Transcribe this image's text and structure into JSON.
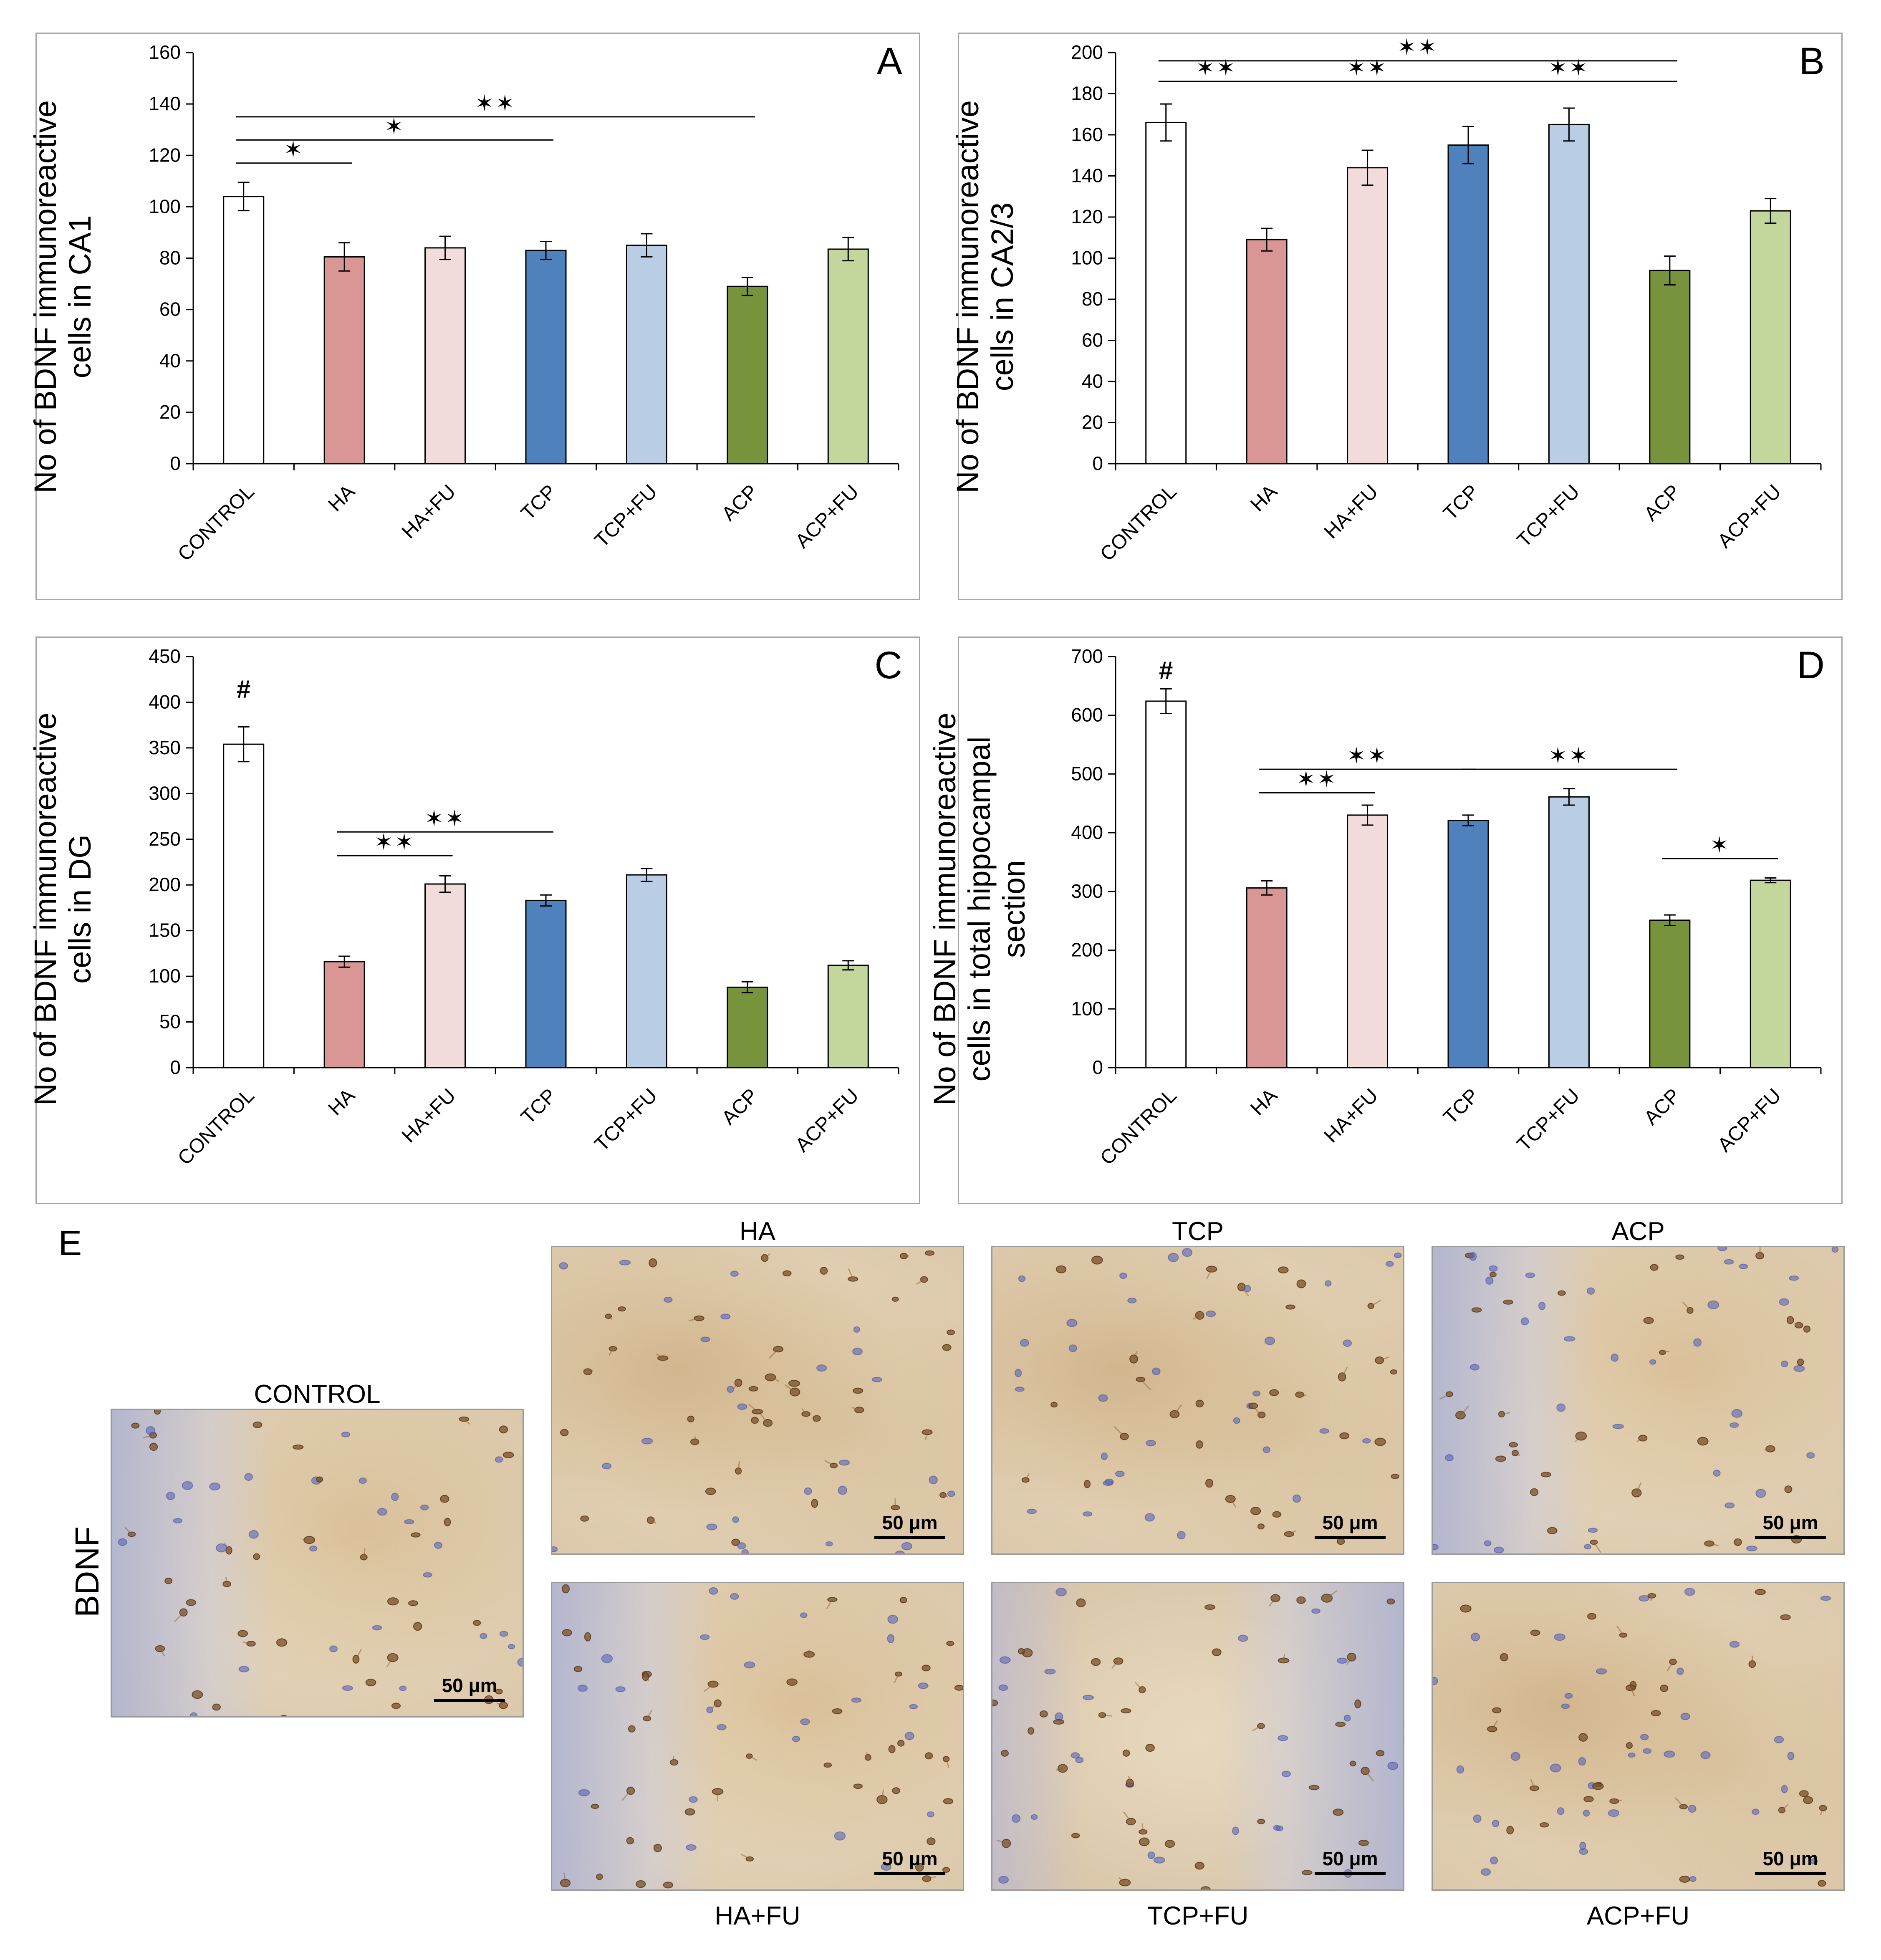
{
  "panels": [
    {
      "id": "A",
      "letter": "A",
      "ylabel_lines": [
        "No of BDNF immunoreactive",
        "cells in CA1"
      ],
      "chart_data": {
        "type": "bar",
        "categories": [
          "CONTROL",
          "HA",
          "HA+FU",
          "TCP",
          "TCP+FU",
          "ACP",
          "ACP+FU"
        ],
        "values": [
          104,
          80.5,
          84,
          83,
          85,
          69,
          83.5
        ],
        "errors": [
          5.5,
          5.5,
          4.5,
          3.5,
          4.5,
          3.5,
          4.5
        ],
        "colors": [
          "#ffffff",
          "#d99694",
          "#f2dcdb",
          "#4f81bd",
          "#b9cde5",
          "#77933c",
          "#c3d69b"
        ],
        "ylim": [
          0,
          160
        ],
        "yticks": [
          0,
          20,
          40,
          60,
          80,
          100,
          120,
          140,
          160
        ],
        "significance": [
          {
            "from": 0,
            "to": 1,
            "y": 117,
            "mark": "✶"
          },
          {
            "from": 0,
            "to": 3,
            "y": 126,
            "mark": "✶"
          },
          {
            "from": 0,
            "to": 5,
            "y": 135,
            "mark": "✶✶"
          }
        ],
        "annotations": []
      }
    },
    {
      "id": "B",
      "letter": "B",
      "ylabel_lines": [
        "No of BDNF immunoreactive",
        "cells in CA2/3"
      ],
      "chart_data": {
        "type": "bar",
        "categories": [
          "CONTROL",
          "HA",
          "HA+FU",
          "TCP",
          "TCP+FU",
          "ACP",
          "ACP+FU"
        ],
        "values": [
          166,
          109,
          144,
          155,
          165,
          94,
          123
        ],
        "errors": [
          9,
          5.5,
          8.5,
          9,
          8,
          7,
          6
        ],
        "colors": [
          "#ffffff",
          "#d99694",
          "#f2dcdb",
          "#4f81bd",
          "#b9cde5",
          "#77933c",
          "#c3d69b"
        ],
        "ylim": [
          0,
          200
        ],
        "yticks": [
          0,
          20,
          40,
          60,
          80,
          100,
          120,
          140,
          160,
          180,
          200
        ],
        "significance": [
          {
            "from": 0,
            "to": 1,
            "y": 186,
            "mark": "✶✶"
          },
          {
            "from": 1,
            "to": 3,
            "y": 186,
            "mark": "✶✶"
          },
          {
            "from": 3,
            "to": 5,
            "y": 186,
            "mark": "✶✶"
          },
          {
            "from": 0,
            "to": 5,
            "y": 196,
            "mark": "✶✶"
          }
        ],
        "annotations": []
      }
    },
    {
      "id": "C",
      "letter": "C",
      "ylabel_lines": [
        "No of BDNF immunoreactive",
        "cells in DG"
      ],
      "chart_data": {
        "type": "bar",
        "categories": [
          "CONTROL",
          "HA",
          "HA+FU",
          "TCP",
          "TCP+FU",
          "ACP",
          "ACP+FU"
        ],
        "values": [
          354,
          116,
          201,
          183,
          211,
          88,
          112
        ],
        "errors": [
          19,
          6,
          9,
          6,
          7,
          6,
          5
        ],
        "colors": [
          "#ffffff",
          "#d99694",
          "#f2dcdb",
          "#4f81bd",
          "#b9cde5",
          "#77933c",
          "#c3d69b"
        ],
        "ylim": [
          0,
          450
        ],
        "yticks": [
          0,
          50,
          100,
          150,
          200,
          250,
          300,
          350,
          400,
          450
        ],
        "significance": [
          {
            "from": 1,
            "to": 2,
            "y": 232,
            "mark": "✶✶"
          },
          {
            "from": 1,
            "to": 3,
            "y": 258,
            "mark": "✶✶"
          }
        ],
        "annotations": [
          {
            "bar": 0,
            "text": "#",
            "y": 405
          }
        ]
      }
    },
    {
      "id": "D",
      "letter": "D",
      "ylabel_lines": [
        "No of BDNF immunoreactive",
        "cells in total hippocampal",
        "section"
      ],
      "chart_data": {
        "type": "bar",
        "categories": [
          "CONTROL",
          "HA",
          "HA+FU",
          "TCP",
          "TCP+FU",
          "ACP",
          "ACP+FU"
        ],
        "values": [
          624,
          306,
          430,
          421,
          461,
          251,
          319
        ],
        "errors": [
          21,
          12,
          17,
          9,
          14,
          9,
          4
        ],
        "colors": [
          "#ffffff",
          "#d99694",
          "#f2dcdb",
          "#4f81bd",
          "#b9cde5",
          "#77933c",
          "#c3d69b"
        ],
        "ylim": [
          0,
          700
        ],
        "yticks": [
          0,
          100,
          200,
          300,
          400,
          500,
          600,
          700
        ],
        "significance": [
          {
            "from": 1,
            "to": 2,
            "y": 468,
            "mark": "✶✶"
          },
          {
            "from": 1,
            "to": 3,
            "y": 508,
            "mark": "✶✶"
          },
          {
            "from": 3,
            "to": 5,
            "y": 508,
            "mark": "✶✶"
          },
          {
            "from": 5,
            "to": 6,
            "y": 356,
            "mark": "✶"
          }
        ],
        "annotations": [
          {
            "bar": 0,
            "text": "#",
            "y": 662
          }
        ]
      }
    }
  ],
  "section_e": {
    "letter": "E",
    "row_label": "BDNF",
    "scale_text": "50 μm",
    "images": {
      "control": {
        "title": "CONTROL"
      },
      "ha": {
        "title": "HA"
      },
      "tcp": {
        "title": "TCP"
      },
      "acp": {
        "title": "ACP"
      },
      "ha_fu": {
        "title": "HA+FU"
      },
      "tcp_fu": {
        "title": "TCP+FU"
      },
      "acp_fu": {
        "title": "ACP+FU"
      }
    }
  }
}
